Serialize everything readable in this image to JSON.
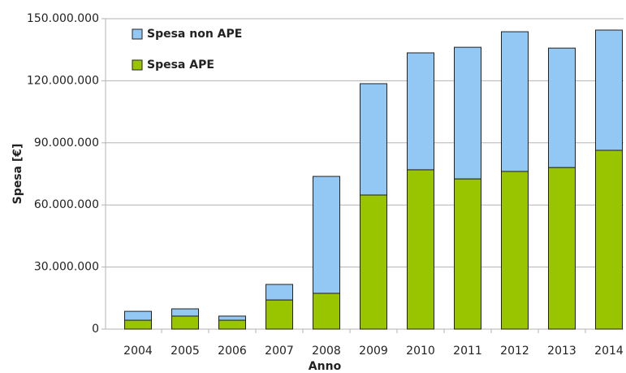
{
  "chart_data": {
    "type": "stacked_bar",
    "y_label": "Spesa [€]",
    "x_label": "Anno",
    "categories": [
      "2004",
      "2005",
      "2006",
      "2007",
      "2008",
      "2009",
      "2010",
      "2011",
      "2012",
      "2013",
      "2014"
    ],
    "series": [
      {
        "name": "Spesa APE",
        "color": "#99c400",
        "values": [
          4300000,
          6300000,
          4300000,
          14100000,
          17300000,
          64800000,
          77000000,
          72600000,
          76200000,
          78100000,
          86400000
        ]
      },
      {
        "name": "Spesa non APE",
        "color": "#93c8f5",
        "values": [
          4300000,
          3500000,
          2000000,
          7500000,
          56500000,
          53800000,
          56500000,
          63600000,
          67500000,
          57700000,
          58100000
        ]
      }
    ],
    "ylim": [
      0,
      150000000
    ],
    "yticks": [
      0,
      {
        "value": 30000000,
        "label": "30.000.000"
      },
      {
        "value": 60000000,
        "label": "60.000.000"
      },
      {
        "value": 90000000,
        "label": "90.000.000"
      },
      {
        "value": 120000000,
        "label": "120.000.000"
      },
      {
        "value": 150000000,
        "label": "150.000.000"
      }
    ],
    "grid": true,
    "legend": "top-left"
  }
}
